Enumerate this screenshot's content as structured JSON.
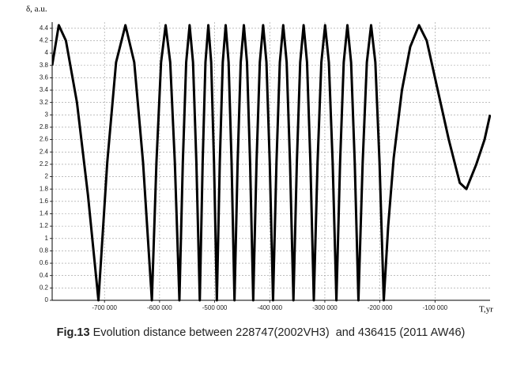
{
  "chart_data": {
    "type": "line",
    "y_label": "δ, a.u.",
    "x_label": "T,yr",
    "caption_label": "Fig.13",
    "caption_text": " Evolution distance between 228747(2002VH3)  and 436415 (2011 AW46)",
    "color": "#000000",
    "grid": true,
    "xlim": [
      -795000,
      0
    ],
    "ylim": [
      0,
      4.5
    ],
    "xticks": [
      {
        "value": -700000,
        "label": "-700 000"
      },
      {
        "value": -600000,
        "label": "-600 000"
      },
      {
        "value": -500000,
        "label": "-500 000"
      },
      {
        "value": -400000,
        "label": "-400 000"
      },
      {
        "value": -300000,
        "label": "-300 000"
      },
      {
        "value": -200000,
        "label": "-200 000"
      },
      {
        "value": -100000,
        "label": "-100 000"
      }
    ],
    "yticks": [
      0,
      0.2,
      0.4,
      0.6,
      0.8,
      1,
      1.2,
      1.4,
      1.6,
      1.8,
      2,
      2.2,
      2.4,
      2.6,
      2.8,
      3,
      3.2,
      3.4,
      3.6,
      3.8,
      4,
      4.2,
      4.4
    ],
    "x": [
      -795000,
      -783000,
      -770000,
      -750000,
      -730000,
      -711000,
      -695000,
      -679000,
      -662000,
      -646000,
      -630000,
      -614000,
      -605700,
      -597300,
      -589000,
      -580700,
      -572300,
      -564000,
      -557800,
      -551700,
      -545500,
      -539300,
      -533200,
      -527000,
      -521800,
      -516700,
      -511500,
      -506300,
      -501200,
      -496000,
      -490700,
      -485300,
      -480000,
      -474700,
      -469300,
      -464000,
      -458300,
      -452700,
      -447000,
      -441300,
      -435700,
      -430000,
      -424000,
      -418000,
      -412000,
      -406000,
      -400000,
      -394000,
      -387800,
      -381700,
      -375500,
      -369300,
      -363200,
      -357000,
      -350800,
      -344700,
      -338500,
      -332300,
      -326200,
      -320000,
      -313200,
      -306300,
      -299500,
      -292700,
      -285800,
      -279000,
      -272300,
      -265700,
      -259000,
      -252300,
      -245700,
      -239000,
      -231300,
      -223700,
      -216000,
      -208300,
      -200700,
      -193000,
      -185000,
      -175000,
      -160000,
      -145000,
      -129000,
      -115000,
      -95000,
      -75000,
      -55000,
      -43000,
      -25000,
      -10000,
      0
    ],
    "values": [
      3.8,
      4.45,
      4.2,
      3.2,
      1.7,
      0,
      2.23,
      3.85,
      4.45,
      3.85,
      2.23,
      0,
      2.23,
      3.85,
      4.45,
      3.85,
      2.23,
      0,
      2.23,
      3.85,
      4.45,
      3.85,
      2.23,
      0,
      2.23,
      3.85,
      4.45,
      3.85,
      2.23,
      0,
      2.23,
      3.85,
      4.45,
      3.85,
      2.23,
      0,
      2.23,
      3.85,
      4.45,
      3.85,
      2.23,
      0,
      2.23,
      3.85,
      4.45,
      3.85,
      2.23,
      0,
      2.23,
      3.85,
      4.45,
      3.85,
      2.23,
      0,
      2.23,
      3.85,
      4.45,
      3.85,
      2.23,
      0,
      2.23,
      3.85,
      4.45,
      3.85,
      2.23,
      0,
      2.23,
      3.85,
      4.45,
      3.85,
      2.23,
      0,
      2.23,
      3.85,
      4.45,
      3.85,
      2.23,
      0,
      1.2,
      2.3,
      3.4,
      4.1,
      4.45,
      4.2,
      3.4,
      2.6,
      1.9,
      1.8,
      2.2,
      2.6,
      3.0
    ]
  }
}
